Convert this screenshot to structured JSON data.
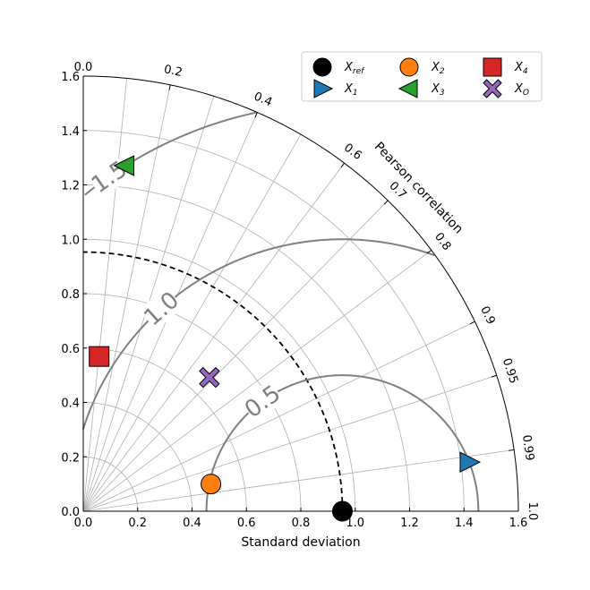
{
  "chart_data": {
    "type": "taylor-diagram",
    "xlabel": "Standard deviation",
    "corr_axis_label": "Pearson correlation",
    "std_ticks": [
      "0.0",
      "0.2",
      "0.4",
      "0.6",
      "0.8",
      "1.0",
      "1.2",
      "1.4",
      "1.6"
    ],
    "std_max": 1.6,
    "corr_ticks": [
      {
        "value": 0.2,
        "label": "0.2"
      },
      {
        "value": 0.4,
        "label": "0.4"
      },
      {
        "value": 0.6,
        "label": "0.6"
      },
      {
        "value": 0.7,
        "label": "0.7"
      },
      {
        "value": 0.8,
        "label": "0.8"
      },
      {
        "value": 0.9,
        "label": "0.9"
      },
      {
        "value": 0.95,
        "label": "0.95"
      },
      {
        "value": 0.99,
        "label": "0.99"
      },
      {
        "value": 1.0,
        "label": "1.0"
      }
    ],
    "corr_top_label": "0.0",
    "corr_grid_lines": [
      0.1,
      0.2,
      0.3,
      0.4,
      0.5,
      0.6,
      0.7,
      0.8,
      0.9,
      0.95,
      0.99
    ],
    "std_grid_arcs": [
      0.2,
      0.4,
      0.6,
      0.8,
      1.0,
      1.2,
      1.4
    ],
    "reference_std": 0.953,
    "rms_contours": [
      0.5,
      1.0,
      1.5
    ],
    "rms_labels": [
      {
        "value": 0.5,
        "label": "0.5"
      },
      {
        "value": 1.0,
        "label": "1.0"
      },
      {
        "value": 1.5,
        "label": "1.5"
      }
    ],
    "points": [
      {
        "key": "xref",
        "legend": "X",
        "sub": "ref",
        "std": 0.953,
        "corr": 1.0,
        "marker": "circle",
        "color": "#000000"
      },
      {
        "key": "x1",
        "legend": "X",
        "sub": "1",
        "std": 1.43,
        "corr": 0.992,
        "marker": "triangle-right",
        "color": "#1f77b4"
      },
      {
        "key": "x2",
        "legend": "X",
        "sub": "2",
        "std": 0.48,
        "corr": 0.978,
        "marker": "circle",
        "color": "#ff7f0e"
      },
      {
        "key": "x3",
        "legend": "X",
        "sub": "3",
        "std": 1.28,
        "corr": 0.12,
        "marker": "triangle-left",
        "color": "#2ca02c"
      },
      {
        "key": "x4",
        "legend": "X",
        "sub": "4",
        "std": 0.572,
        "corr": 0.102,
        "marker": "square",
        "color": "#d62728"
      },
      {
        "key": "xo",
        "legend": "X",
        "sub": "O",
        "std": 0.676,
        "corr": 0.686,
        "marker": "x",
        "color": "#9467bd"
      }
    ],
    "legend_order": [
      "xref",
      "x1",
      "x2",
      "x3",
      "x4",
      "xo"
    ],
    "legend_placement": "top-right"
  }
}
